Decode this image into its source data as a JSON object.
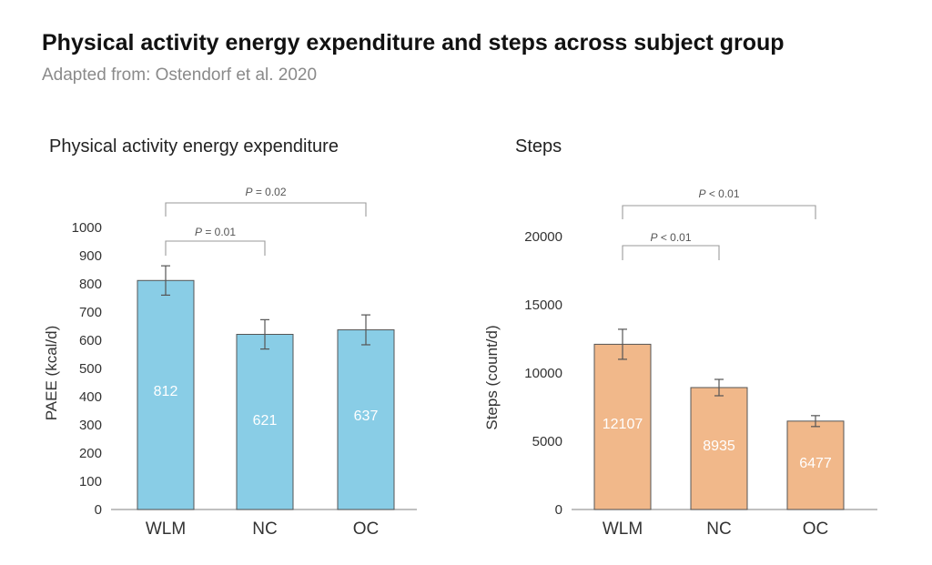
{
  "header": {
    "title": "Physical activity energy expenditure and steps across subject group",
    "subtitle": "Adapted from: Ostendorf et al. 2020"
  },
  "colors": {
    "paee_bar": "#89cde6",
    "steps_bar": "#f1b88a",
    "bar_stroke": "#555555",
    "axis": "#9a9a9a",
    "bracket": "#9a9a9a",
    "text": "#333333",
    "value_label": "#ffffff"
  },
  "chart_data": [
    {
      "type": "bar",
      "title": "Physical activity energy expenditure",
      "ylabel": "PAEE (kcal/d)",
      "xlabel": "",
      "categories": [
        "WLM",
        "NC",
        "OC"
      ],
      "values": [
        812,
        621,
        637
      ],
      "errors": [
        52,
        52,
        53
      ],
      "value_labels": [
        "812",
        "621",
        "637"
      ],
      "ylim": [
        0,
        1000
      ],
      "yticks": [
        0,
        100,
        200,
        300,
        400,
        500,
        600,
        700,
        800,
        900,
        1000
      ],
      "grid": false,
      "significance": [
        {
          "from": "WLM",
          "to": "NC",
          "label": "P = 0.01"
        },
        {
          "from": "WLM",
          "to": "OC",
          "label": "P = 0.02"
        }
      ]
    },
    {
      "type": "bar",
      "title": "Steps",
      "ylabel": "Steps (count/d)",
      "xlabel": "",
      "categories": [
        "WLM",
        "NC",
        "OC"
      ],
      "values": [
        12107,
        8935,
        6477
      ],
      "errors": [
        1100,
        600,
        400
      ],
      "value_labels": [
        "12107",
        "8935",
        "6477"
      ],
      "ylim": [
        0,
        20000
      ],
      "yticks": [
        0,
        5000,
        10000,
        15000,
        20000
      ],
      "grid": false,
      "significance": [
        {
          "from": "WLM",
          "to": "NC",
          "label": "P < 0.01"
        },
        {
          "from": "WLM",
          "to": "OC",
          "label": "P < 0.01"
        }
      ]
    }
  ]
}
